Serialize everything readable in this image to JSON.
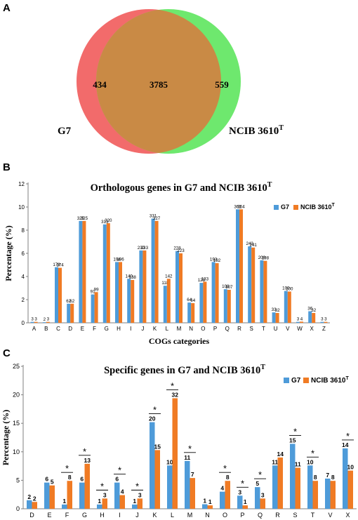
{
  "panels": {
    "a": "A",
    "b": "B",
    "c": "C"
  },
  "venn": {
    "left_only": "434",
    "shared": "3785",
    "right_only": "559",
    "left_label": "G7",
    "right_label_main": "NCIB 3610",
    "right_label_sup": "T",
    "left_color": "#F26B6B",
    "right_color": "#6EE86E",
    "overlap_color": "#C98A45"
  },
  "chart_data": [
    {
      "type": "bar",
      "title": "Orthologous genes in G7 and NCIB 3610",
      "title_sup": "T",
      "xlabel": "COGs categories",
      "ylabel": "Percentage (%)",
      "ylim": [
        0,
        12
      ],
      "yticks": [
        "0",
        "2",
        "4",
        "6",
        "8",
        "10",
        "12"
      ],
      "grid": false,
      "legend_position": "top-right",
      "categories": [
        "A",
        "B",
        "C",
        "D",
        "E",
        "F",
        "G",
        "H",
        "I",
        "J",
        "K",
        "L",
        "M",
        "N",
        "O",
        "P",
        "Q",
        "R",
        "S",
        "T",
        "U",
        "V",
        "W",
        "X",
        "Z"
      ],
      "series": [
        {
          "name": "G7",
          "color": "#4E9BD9",
          "values": [
            0.08,
            0.05,
            4.8,
            1.65,
            8.8,
            2.45,
            8.5,
            5.25,
            3.8,
            6.25,
            9.0,
            3.2,
            6.2,
            1.75,
            3.45,
            5.25,
            2.9,
            9.8,
            6.6,
            5.4,
            0.9,
            2.75,
            0.08,
            1.0,
            0.08
          ],
          "labels": [
            "3",
            "2",
            "178",
            "62",
            "325",
            "91",
            "313",
            "194",
            "140",
            "230",
            "331",
            "118",
            "228",
            "64",
            "128",
            "193",
            "108",
            "361",
            "243",
            "200",
            "33",
            "100",
            "3",
            "36",
            "3"
          ]
        },
        {
          "name": "NCIB 3610",
          "name_sup": "T",
          "color": "#F07B24",
          "values": [
            0.08,
            0.08,
            4.75,
            1.65,
            8.8,
            2.65,
            8.6,
            5.25,
            3.7,
            6.25,
            8.8,
            3.8,
            6.0,
            1.7,
            3.55,
            5.15,
            2.85,
            9.8,
            6.5,
            5.35,
            0.85,
            2.7,
            0.1,
            0.85,
            0.08
          ],
          "labels": [
            "3",
            "3",
            "174",
            "62",
            "325",
            "99",
            "320",
            "196",
            "138",
            "233",
            "327",
            "142",
            "223",
            "64",
            "133",
            "192",
            "107",
            "364",
            "241",
            "198",
            "32",
            "100",
            "4",
            "32",
            "3"
          ]
        }
      ]
    },
    {
      "type": "bar",
      "title": "Specific genes in G7 and NCIB 3610",
      "title_sup": "T",
      "xlabel": "",
      "ylabel": "Percentage (%)",
      "ylim": [
        0,
        25
      ],
      "yticks": [
        "0",
        "5",
        "10",
        "15",
        "20",
        "25"
      ],
      "grid": false,
      "legend_position": "top-right",
      "categories": [
        "D",
        "E",
        "F",
        "G",
        "H",
        "I",
        "J",
        "K",
        "L",
        "M",
        "N",
        "O",
        "P",
        "Q",
        "R",
        "S",
        "T",
        "V",
        "X"
      ],
      "significance_marker": "*",
      "significant": [
        false,
        false,
        true,
        true,
        true,
        true,
        true,
        true,
        true,
        true,
        false,
        true,
        true,
        true,
        false,
        true,
        true,
        false,
        true
      ],
      "series": [
        {
          "name": "G7",
          "color": "#4E9BD9",
          "values": [
            1.5,
            4.6,
            0.75,
            4.6,
            0.75,
            4.6,
            0.75,
            15.2,
            7.6,
            8.4,
            0.8,
            3.0,
            2.3,
            3.8,
            7.6,
            11.4,
            7.6,
            5.3,
            10.6
          ],
          "labels": [
            "2",
            "6",
            "1",
            "6",
            "1",
            "6",
            "1",
            "20",
            "10",
            "11",
            "1",
            "4",
            "3",
            "5",
            "11",
            "15",
            "10",
            "7",
            "14"
          ]
        },
        {
          "name": "NCIB 3610",
          "name_sup": "T",
          "color": "#F07B24",
          "values": [
            1.2,
            4.1,
            4.9,
            7.9,
            1.8,
            2.4,
            1.8,
            10.3,
            19.4,
            5.4,
            0.6,
            4.9,
            0.6,
            1.8,
            9.0,
            7.2,
            4.9,
            4.9,
            6.7
          ],
          "labels": [
            "2",
            "5",
            "8",
            "13",
            "3",
            "4",
            "3",
            "15",
            "32",
            "7",
            "1",
            "8",
            "1",
            "3",
            "14",
            "11",
            "8",
            "8",
            "10"
          ]
        }
      ]
    }
  ]
}
